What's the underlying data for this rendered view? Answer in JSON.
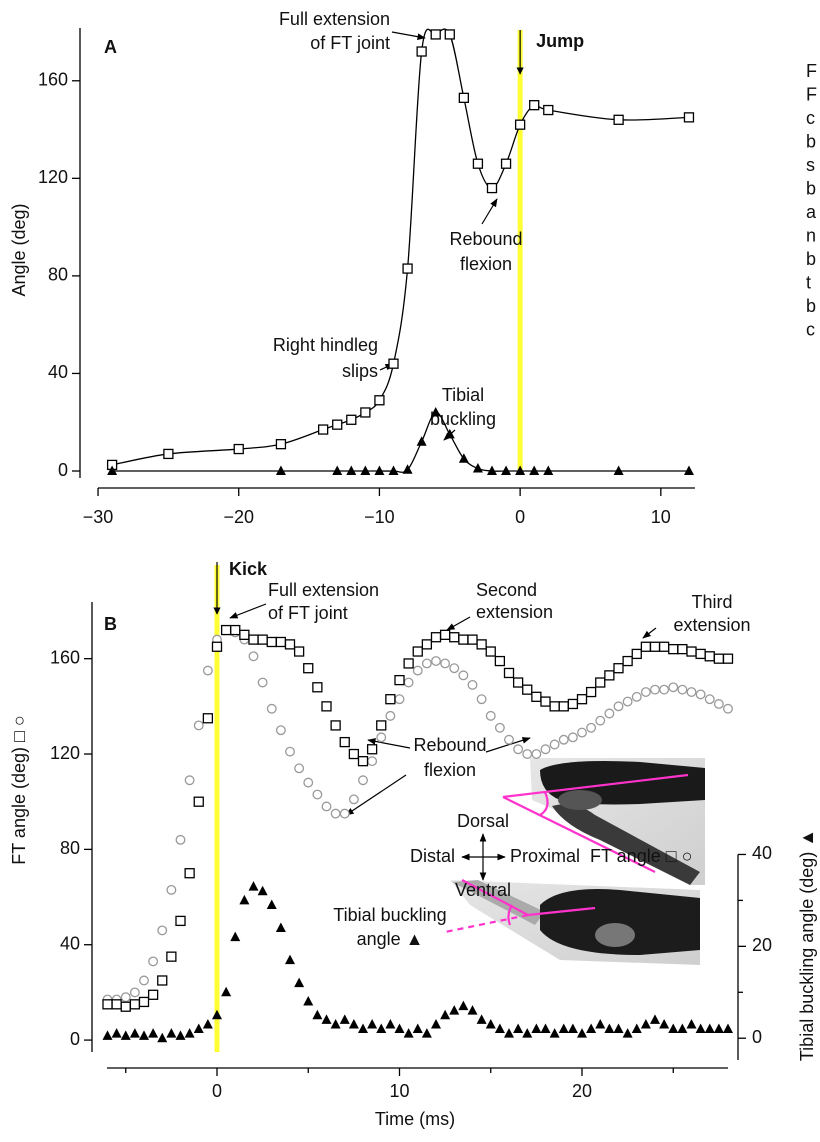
{
  "chart_data": [
    {
      "type": "line",
      "panel_label": "A",
      "y_label": "Angle (deg)",
      "xlim": [
        -30.5,
        12.5
      ],
      "ylim": [
        0,
        180
      ],
      "xticks": [
        {
          "value": -30,
          "label": "−30"
        },
        {
          "value": -20,
          "label": "−20"
        },
        {
          "value": -10,
          "label": "−10"
        },
        0,
        10
      ],
      "yticks": [
        0,
        40,
        80,
        120,
        160
      ],
      "event": {
        "label": "Jump",
        "x": 0,
        "color": "#ffff33"
      },
      "series": [
        {
          "marker": "square",
          "color": "#000000",
          "x": [
            -29,
            -25,
            -20,
            -17,
            -14,
            -13,
            -12,
            -11,
            -10,
            -9,
            -8,
            -7,
            -6,
            -5,
            -4,
            -3,
            -2,
            -1,
            0,
            1,
            2,
            7,
            12
          ],
          "values": [
            2.5,
            7,
            9,
            11,
            17,
            19,
            21,
            24,
            29,
            44,
            83,
            172,
            179,
            179,
            153,
            126,
            116,
            126,
            142,
            150,
            148,
            144,
            145
          ]
        },
        {
          "marker": "triangle",
          "color": "#000000",
          "x": [
            -29,
            -17,
            -13,
            -12,
            -11,
            -10,
            -9,
            -8,
            -7,
            -6,
            -5,
            -4,
            -3,
            -2,
            -1,
            0,
            1,
            2,
            7,
            12
          ],
          "values": [
            0,
            0,
            0,
            0,
            0,
            0,
            0,
            0.5,
            12,
            24,
            15,
            5,
            1,
            0,
            0,
            0,
            0,
            0,
            0,
            0
          ]
        }
      ],
      "annotations": [
        [
          "Full extension",
          "of FT joint"
        ],
        [
          "Right hindleg",
          "slips"
        ],
        [
          "Tibial",
          "buckling"
        ],
        [
          "Rebound",
          "flexion"
        ]
      ]
    },
    {
      "type": "scatter",
      "panel_label": "B",
      "y_label": "FT angle (deg) □ ○",
      "y2_label": "Tibial buckling angle (deg) ▲",
      "x_label": "Time (ms)",
      "xlim": [
        -6,
        28
      ],
      "ylim": [
        -5,
        180
      ],
      "y2lim": [
        -3,
        93
      ],
      "xticks": [
        0,
        10,
        20
      ],
      "xminorticks": [
        -5,
        5,
        15,
        25
      ],
      "yticks": [
        0,
        40,
        80,
        120,
        160
      ],
      "y2ticks": [
        0,
        20,
        40
      ],
      "y2minorticks": [
        10,
        30
      ],
      "event": {
        "label": "Kick",
        "x": 0,
        "color": "#ffff33"
      },
      "x": [
        -6,
        -5.5,
        -5,
        -4.5,
        -4,
        -3.5,
        -3,
        -2.5,
        -2,
        -1.5,
        -1,
        -0.5,
        0,
        0.5,
        1,
        1.5,
        2,
        2.5,
        3,
        3.5,
        4,
        4.5,
        5,
        5.5,
        6,
        6.5,
        7,
        7.5,
        8,
        8.5,
        9,
        9.5,
        10,
        10.5,
        11,
        11.5,
        12,
        12.5,
        13,
        13.5,
        14,
        14.5,
        15,
        15.5,
        16,
        16.5,
        17,
        17.5,
        18,
        18.5,
        19,
        19.5,
        20,
        20.5,
        21,
        21.5,
        22,
        22.5,
        23,
        23.5,
        24,
        24.5,
        25,
        25.5,
        26,
        26.5,
        27,
        27.5,
        28
      ],
      "series": [
        {
          "marker": "circle",
          "color": "#999999",
          "values": [
            17,
            17,
            18,
            20,
            25,
            33,
            46,
            63,
            84,
            109,
            132,
            155,
            168,
            172,
            171,
            168,
            161,
            150,
            139,
            130,
            121,
            114,
            108,
            103,
            98,
            95,
            95,
            101,
            109,
            117,
            127,
            136,
            143,
            150,
            155,
            158,
            159,
            158,
            156,
            153,
            149,
            143,
            136,
            131,
            126,
            122,
            120,
            120,
            122,
            124,
            126,
            127,
            129,
            131,
            134,
            137,
            140,
            142,
            144,
            146,
            147,
            147,
            148,
            147,
            146,
            145,
            143,
            141,
            139
          ]
        },
        {
          "marker": "square",
          "color": "#000000",
          "values": [
            15,
            15,
            14,
            15,
            16,
            19,
            25,
            35,
            50,
            70,
            100,
            135,
            165,
            172,
            172,
            170,
            168,
            168,
            167,
            167,
            166,
            163,
            156,
            148,
            140,
            132,
            125,
            120,
            117,
            122,
            132,
            143,
            151,
            158,
            163,
            166,
            169,
            170,
            169,
            168,
            168,
            166,
            163,
            159,
            154,
            150,
            147,
            144,
            142,
            140,
            140,
            141,
            143,
            146,
            150,
            153,
            156,
            159,
            162,
            165,
            165,
            165,
            164,
            164,
            163,
            162,
            161,
            160,
            160
          ]
        },
        {
          "marker": "triangle",
          "color": "#000000",
          "axis": "y2",
          "values": [
            0.5,
            1,
            0.5,
            1,
            0.5,
            1,
            0,
            1,
            0.5,
            1,
            2,
            3,
            5,
            10,
            22,
            30,
            33,
            32,
            29,
            24,
            17,
            12,
            8,
            5,
            4,
            3,
            4,
            3,
            2,
            3,
            2,
            3,
            2,
            1,
            2,
            1,
            3,
            5,
            6,
            7,
            6,
            4,
            3,
            2,
            1,
            2,
            1,
            2,
            2,
            1,
            2,
            2,
            1,
            2,
            3,
            2,
            2,
            1,
            2,
            3,
            4,
            3,
            2,
            2,
            3,
            2,
            2,
            2,
            2
          ]
        }
      ],
      "annotations": [
        [
          "Full extension",
          "of FT joint"
        ],
        [
          "Second",
          "extension"
        ],
        [
          "Third",
          "extension"
        ],
        [
          "Rebound",
          "flexion"
        ]
      ],
      "compass": [
        "Dorsal",
        "Distal",
        "Proximal",
        "Ventral"
      ],
      "inset_labels": [
        [
          "FT angle □ ○"
        ],
        [
          "Tibial buckling",
          "angle ▲"
        ]
      ]
    }
  ],
  "side_text": [
    "F",
    "F",
    "c",
    "b",
    "s",
    "b",
    "a",
    "n",
    "b",
    "t",
    "b",
    "c"
  ]
}
